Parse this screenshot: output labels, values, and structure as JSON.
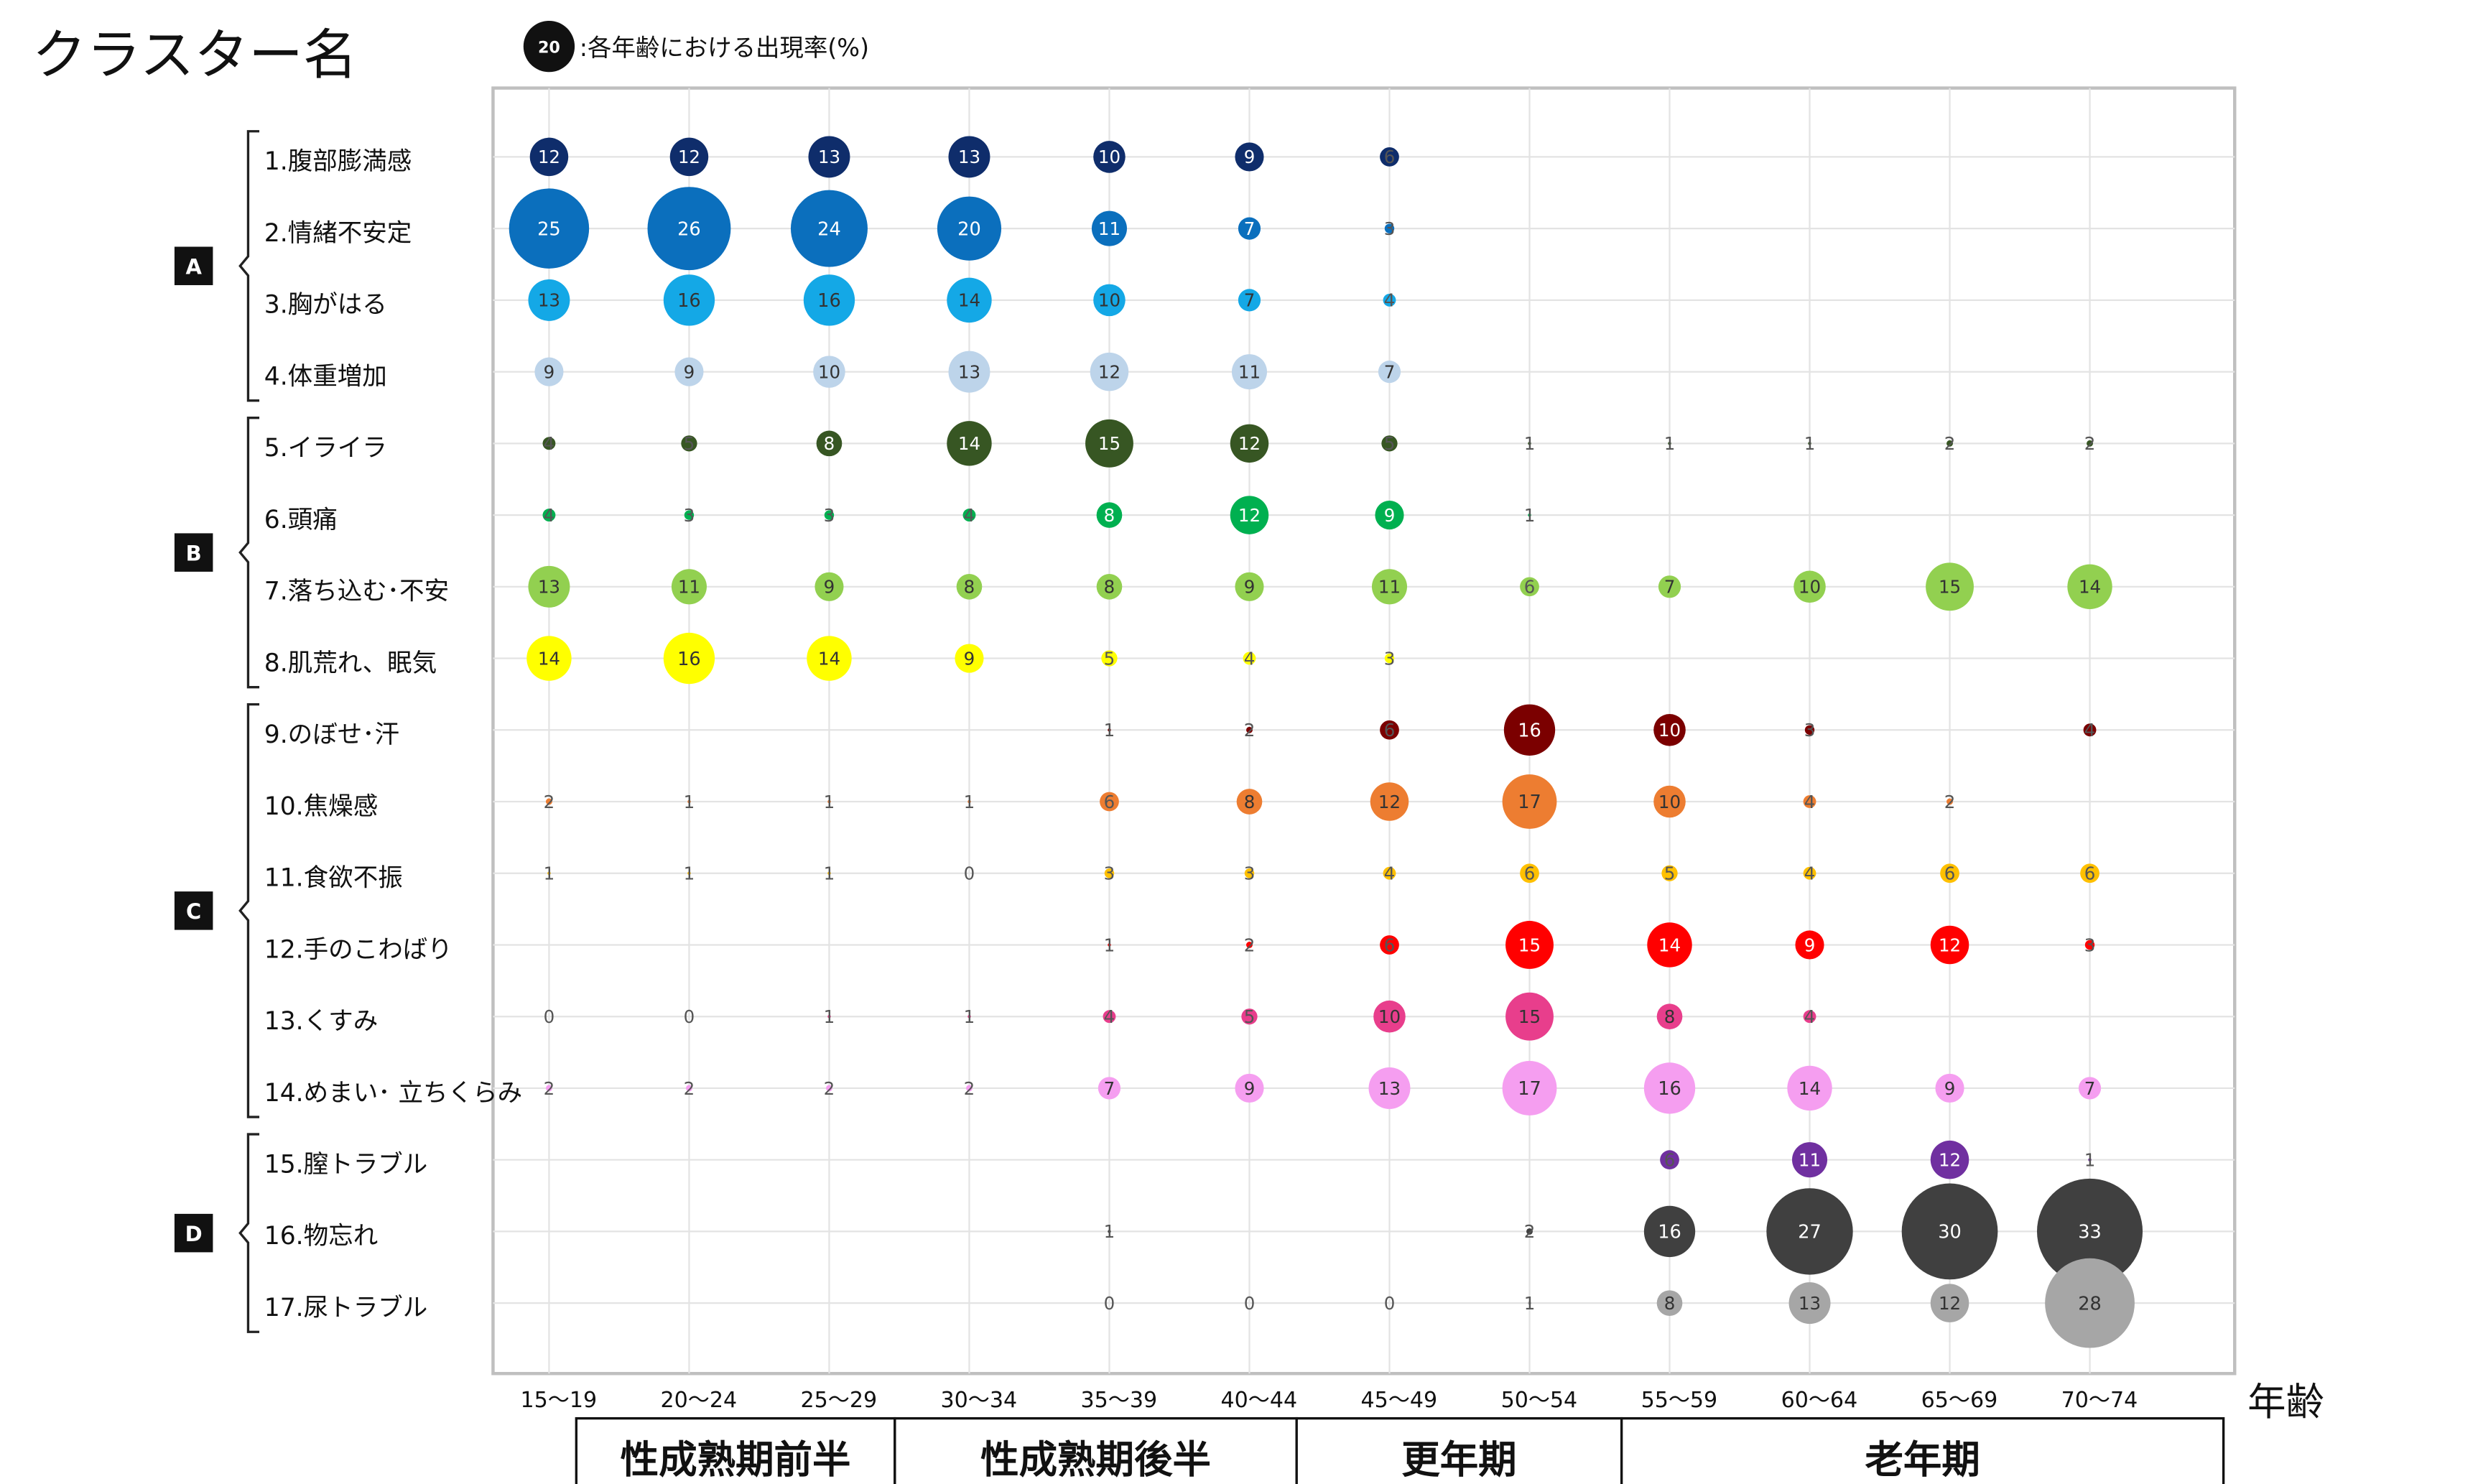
{
  "title": "クラスター名",
  "legend": {
    "sample_value": "20",
    "text": ":各年齢における出現率(%)"
  },
  "age_axis_label": "年齢",
  "groups": [
    {
      "label": "A",
      "from_row": 0,
      "to_row": 3
    },
    {
      "label": "B",
      "from_row": 4,
      "to_row": 7
    },
    {
      "label": "C",
      "from_row": 8,
      "to_row": 13
    },
    {
      "label": "D",
      "from_row": 14,
      "to_row": 16
    }
  ],
  "life_stages": [
    {
      "label": "性成熟期前半",
      "from_col": 0,
      "to_col": 2
    },
    {
      "label": "性成熟期後半",
      "from_col": 3,
      "to_col": 5
    },
    {
      "label": "更年期",
      "from_col": 6,
      "to_col": 7
    },
    {
      "label": "老年期",
      "from_col": 8,
      "to_col": 11
    }
  ],
  "chart_data": {
    "type": "scatter",
    "subtype": "bubble",
    "x": [
      "15～19",
      "20～24",
      "25～29",
      "30～34",
      "35～39",
      "40～44",
      "45～49",
      "50～54",
      "55～59",
      "60～64",
      "65～69",
      "70～74"
    ],
    "xlabel": "年齢",
    "value_unit": "%",
    "series": [
      {
        "name": "1.腹部膨満感",
        "color": "#0f2d6b",
        "values": [
          12,
          12,
          13,
          13,
          10,
          9,
          6,
          null,
          null,
          null,
          null,
          null
        ]
      },
      {
        "name": "2.情緒不安定",
        "color": "#0b6fbd",
        "values": [
          25,
          26,
          24,
          20,
          11,
          7,
          3,
          null,
          null,
          null,
          null,
          null
        ]
      },
      {
        "name": "3.胸がはる",
        "color": "#14a8e6",
        "values": [
          13,
          16,
          16,
          14,
          10,
          7,
          4,
          null,
          null,
          null,
          null,
          null
        ]
      },
      {
        "name": "4.体重増加",
        "color": "#bdd4ea",
        "values": [
          9,
          9,
          10,
          13,
          12,
          11,
          7,
          null,
          null,
          null,
          null,
          null
        ]
      },
      {
        "name": "5.イライラ",
        "color": "#375623",
        "values": [
          4,
          5,
          8,
          14,
          15,
          12,
          5,
          1,
          1,
          1,
          2,
          2
        ]
      },
      {
        "name": "6.頭痛",
        "color": "#00b050",
        "values": [
          4,
          3,
          3,
          4,
          8,
          12,
          9,
          1,
          null,
          null,
          null,
          null
        ]
      },
      {
        "name": "7.落ち込む･不安",
        "color": "#92d050",
        "values": [
          13,
          11,
          9,
          8,
          8,
          9,
          11,
          6,
          7,
          10,
          15,
          14
        ]
      },
      {
        "name": "8.肌荒れ、眠気",
        "color": "#ffff00",
        "values": [
          14,
          16,
          14,
          9,
          5,
          4,
          3,
          null,
          null,
          null,
          null,
          null
        ]
      },
      {
        "name": "9.のぼせ･汗",
        "color": "#7b0000",
        "values": [
          null,
          null,
          null,
          null,
          1,
          2,
          6,
          16,
          10,
          3,
          null,
          4
        ]
      },
      {
        "name": "10.焦燥感",
        "color": "#ed7d31",
        "values": [
          2,
          1,
          1,
          1,
          6,
          8,
          12,
          17,
          10,
          4,
          2,
          null
        ]
      },
      {
        "name": "11.食欲不振",
        "color": "#ffc000",
        "values": [
          1,
          1,
          1,
          0,
          3,
          3,
          4,
          6,
          5,
          4,
          6,
          6
        ]
      },
      {
        "name": "12.手のこわばり",
        "color": "#ff0000",
        "values": [
          null,
          null,
          null,
          null,
          1,
          2,
          6,
          15,
          14,
          9,
          12,
          3
        ]
      },
      {
        "name": "13.くすみ",
        "color": "#e83e8c",
        "values": [
          0,
          0,
          1,
          1,
          4,
          5,
          10,
          15,
          8,
          4,
          null,
          null
        ]
      },
      {
        "name": "14.めまい･ 立ちくらみ",
        "color": "#f59ef0",
        "values": [
          2,
          2,
          2,
          2,
          7,
          9,
          13,
          17,
          16,
          14,
          9,
          7
        ]
      },
      {
        "name": "15.膣トラブル",
        "color": "#7030a0",
        "values": [
          null,
          null,
          null,
          null,
          null,
          null,
          null,
          null,
          6,
          11,
          12,
          1
        ]
      },
      {
        "name": "16.物忘れ",
        "color": "#404040",
        "values": [
          null,
          null,
          null,
          null,
          1,
          null,
          null,
          2,
          16,
          27,
          30,
          33
        ]
      },
      {
        "name": "17.尿トラブル",
        "color": "#a6a6a6",
        "values": [
          null,
          null,
          null,
          null,
          0,
          0,
          0,
          1,
          8,
          13,
          12,
          28
        ]
      }
    ]
  }
}
